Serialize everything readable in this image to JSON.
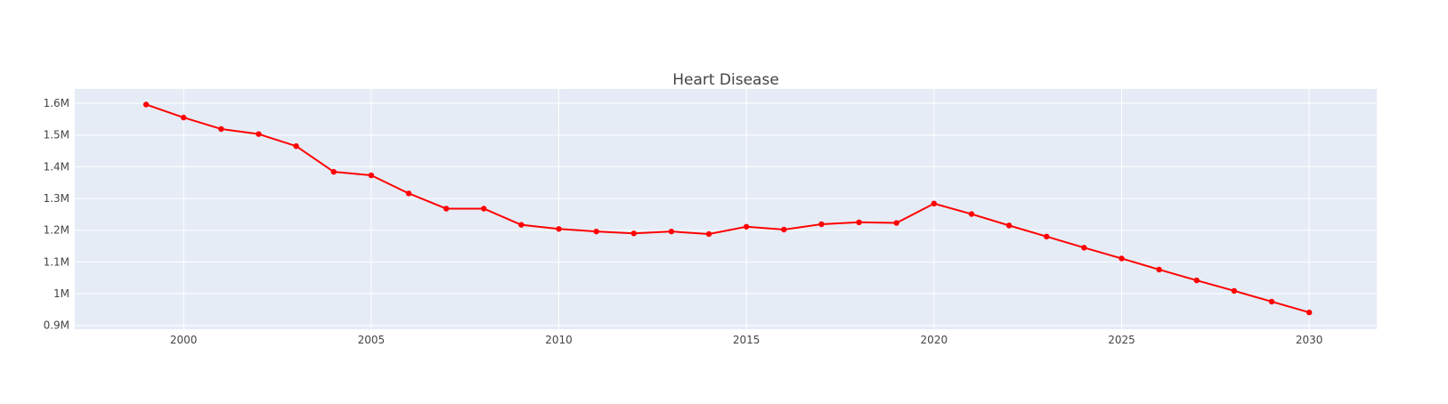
{
  "chart_data": {
    "type": "line",
    "title": "Heart Disease",
    "xlabel": "",
    "ylabel": "",
    "xlim": [
      1997.1,
      2031.8
    ],
    "ylim": [
      0.888,
      1.645
    ],
    "x_ticks": [
      2000,
      2005,
      2010,
      2015,
      2020,
      2025,
      2030
    ],
    "x_tick_labels": [
      "2000",
      "2005",
      "2010",
      "2015",
      "2020",
      "2025",
      "2030"
    ],
    "y_ticks": [
      0.9,
      1.0,
      1.1,
      1.2,
      1.3,
      1.4,
      1.5,
      1.6
    ],
    "y_tick_labels": [
      "0.9M",
      "1M",
      "1.1M",
      "1.2M",
      "1.3M",
      "1.4M",
      "1.5M",
      "1.6M"
    ],
    "y_unit": "millions",
    "grid": true,
    "legend": "none",
    "colors": {
      "plot_bg": "#e5ecf6",
      "grid": "#ffffff",
      "line": "#ff0000",
      "marker": "#ff0000",
      "text": "#444444"
    },
    "series": [
      {
        "x": [
          1999,
          2000,
          2001,
          2002,
          2003,
          2004,
          2005,
          2006,
          2007,
          2008,
          2009,
          2010,
          2011,
          2012,
          2013,
          2014,
          2015,
          2016,
          2017,
          2018,
          2019,
          2020,
          2021,
          2022,
          2023,
          2024,
          2025,
          2026,
          2027,
          2028,
          2029,
          2030
        ],
        "y": [
          1.596,
          1.555,
          1.519,
          1.503,
          1.465,
          1.384,
          1.373,
          1.316,
          1.268,
          1.268,
          1.217,
          1.204,
          1.196,
          1.19,
          1.196,
          1.188,
          1.211,
          1.202,
          1.219,
          1.225,
          1.223,
          1.284,
          1.251,
          1.215,
          1.18,
          1.145,
          1.111,
          1.076,
          1.042,
          1.009,
          0.975,
          0.941
        ]
      }
    ]
  }
}
